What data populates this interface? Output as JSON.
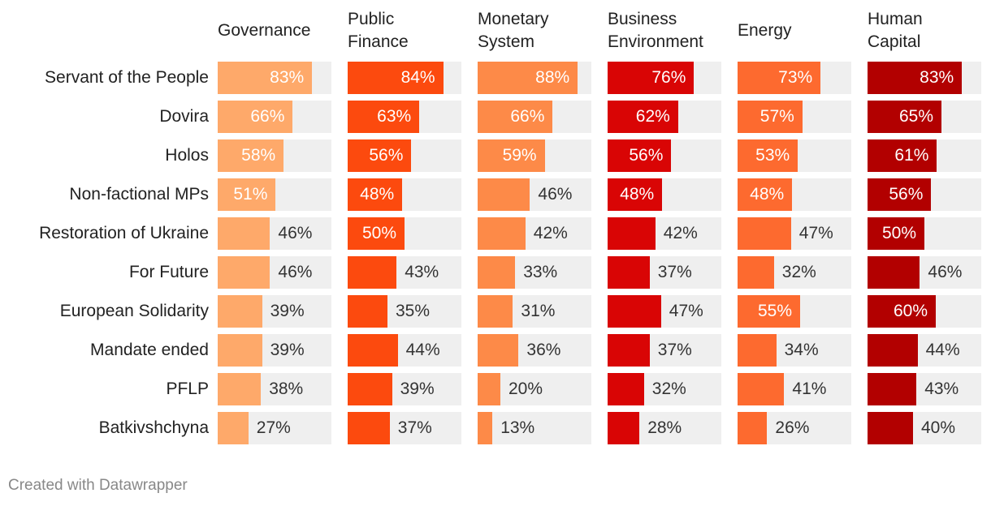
{
  "chart_data": {
    "type": "bar",
    "layout": "small-multiples",
    "xlim": [
      0,
      100
    ],
    "unit": "%",
    "categories": [
      "Servant of the People",
      "Dovira",
      "Holos",
      "Non-factional MPs",
      "Restoration of Ukraine",
      "For Future",
      "European Solidarity",
      "Mandate ended",
      "PFLP",
      "Batkivshchyna"
    ],
    "series": [
      {
        "name": "Governance",
        "header_lines": [
          "Governance"
        ],
        "color": "#fea96a",
        "values": [
          83,
          66,
          58,
          51,
          46,
          46,
          39,
          39,
          38,
          27
        ]
      },
      {
        "name": "Public Finance",
        "header_lines": [
          "Public",
          "Finance"
        ],
        "color": "#fc4a0e",
        "values": [
          84,
          63,
          56,
          48,
          50,
          43,
          35,
          44,
          39,
          37
        ]
      },
      {
        "name": "Monetary System",
        "header_lines": [
          "Monetary",
          "System"
        ],
        "color": "#fd8a48",
        "values": [
          88,
          66,
          59,
          46,
          42,
          33,
          31,
          36,
          20,
          13
        ]
      },
      {
        "name": "Business Environment",
        "header_lines": [
          "Business",
          "Environment"
        ],
        "color": "#d90505",
        "values": [
          76,
          62,
          56,
          48,
          42,
          37,
          47,
          37,
          32,
          28
        ]
      },
      {
        "name": "Energy",
        "header_lines": [
          "Energy"
        ],
        "color": "#fd6a2f",
        "values": [
          73,
          57,
          53,
          48,
          47,
          32,
          55,
          34,
          41,
          26
        ]
      },
      {
        "name": "Human Capital",
        "header_lines": [
          "Human",
          "Capital"
        ],
        "color": "#b20000",
        "values": [
          83,
          65,
          61,
          56,
          50,
          46,
          60,
          44,
          43,
          40
        ]
      }
    ]
  },
  "footer": {
    "credit": "Created with Datawrapper"
  }
}
